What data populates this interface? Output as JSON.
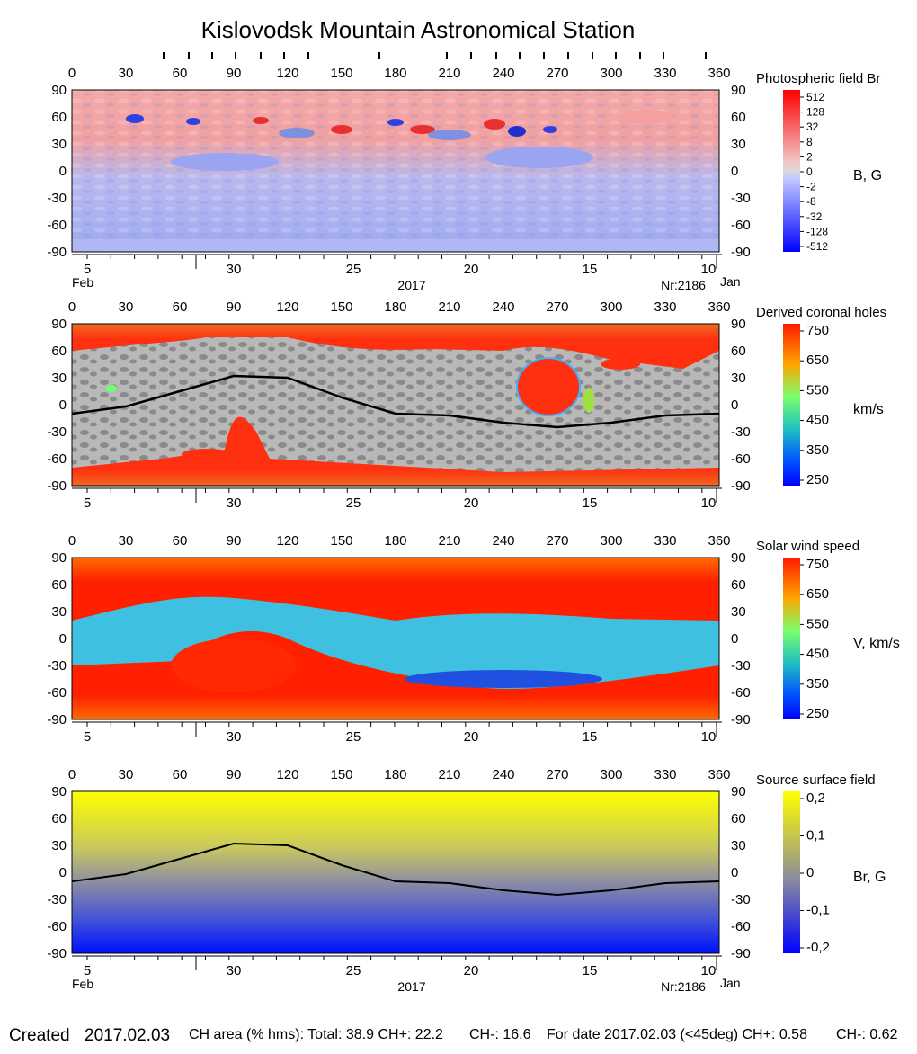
{
  "title": "Kislovodsk Mountain Astronomical Station",
  "panels": [
    {
      "id": "photospheric",
      "label": "Photospheric field Br",
      "unit": "B, G",
      "colorbar_ticks": [
        "512",
        "128",
        "32",
        "8",
        "2",
        "0",
        "-2",
        "-8",
        "-32",
        "-128",
        "-512"
      ],
      "colorbar_colors": [
        "#ff0000",
        "#f0d7d7",
        "#d8d8d8",
        "#bfc7ff",
        "#0000ff"
      ],
      "map_colors": {
        "positive": "#f4a0a0",
        "negative": "#a0a8f0",
        "strong_positive": "#e83030",
        "strong_negative": "#3040e0"
      },
      "show_month_labels": true,
      "show_year": true,
      "show_rotation": true
    },
    {
      "id": "coronal-holes",
      "label": "Derived coronal holes",
      "unit": "km/s",
      "colorbar_ticks": [
        "750",
        "650",
        "550",
        "450",
        "350",
        "250"
      ],
      "colorbar_colors": [
        "#ff1a00",
        "#ffa500",
        "#7aff6a",
        "#20c0c0",
        "#0050ff",
        "#0000ff"
      ],
      "map_colors": {
        "hole": "#e84020",
        "closed": "#b8b8b8",
        "dark": "#808080"
      },
      "show_month_labels": false,
      "show_year": false,
      "show_rotation": false
    },
    {
      "id": "solar-wind",
      "label": "Solar wind speed",
      "unit": "V, km/s",
      "colorbar_ticks": [
        "750",
        "650",
        "550",
        "450",
        "350",
        "250"
      ],
      "colorbar_colors": [
        "#ff1a00",
        "#ffa500",
        "#7aff6a",
        "#20c0c0",
        "#0050ff",
        "#0000ff"
      ],
      "map_colors": {
        "fast": "#ff2800",
        "slow": "#40c0e0",
        "slowest": "#2050e0"
      },
      "show_month_labels": false,
      "show_year": false,
      "show_rotation": false
    },
    {
      "id": "source-surface",
      "label": "Source surface field",
      "unit": "Br, G",
      "colorbar_ticks": [
        "0,2",
        "0,1",
        "0",
        "-0,1",
        "-0,2"
      ],
      "colorbar_colors": [
        "#ffff00",
        "#a0a070",
        "#909090",
        "#4050d0",
        "#0000ff"
      ],
      "map_colors": {
        "top": "#ffff00",
        "mid": "#9a9a80",
        "bottom": "#0010ff"
      },
      "show_month_labels": true,
      "show_year": true,
      "show_rotation": true
    }
  ],
  "axes": {
    "longitude_ticks": [
      "0",
      "30",
      "60",
      "90",
      "120",
      "150",
      "180",
      "210",
      "240",
      "270",
      "300",
      "330",
      "360"
    ],
    "latitude_ticks": [
      "90",
      "60",
      "30",
      "0",
      "-30",
      "-60",
      "-90"
    ],
    "date_ticks": [
      "5",
      "30",
      "25",
      "20",
      "15",
      "10"
    ],
    "month_left": "Feb",
    "month_right": "Jan",
    "year": "2017",
    "rotation": "Nr:2186"
  },
  "chart_data": [
    {
      "type": "heatmap",
      "title": "Photospheric field Br",
      "colorbar_label": "B, G",
      "x_range": [
        0,
        360
      ],
      "y_range": [
        -90,
        90
      ],
      "colorbar_levels": [
        512,
        128,
        32,
        8,
        2,
        0,
        -2,
        -8,
        -32,
        -128,
        -512
      ]
    },
    {
      "type": "heatmap",
      "title": "Derived coronal holes",
      "colorbar_label": "km/s",
      "x_range": [
        0,
        360
      ],
      "y_range": [
        -90,
        90
      ],
      "colorbar_range": [
        250,
        750
      ],
      "neutral_line": {
        "x": [
          0,
          30,
          60,
          90,
          120,
          150,
          180,
          210,
          240,
          270,
          300,
          330,
          360
        ],
        "y": [
          -10,
          -2,
          15,
          32,
          30,
          8,
          -10,
          -12,
          -20,
          -25,
          -20,
          -12,
          -10
        ]
      }
    },
    {
      "type": "heatmap",
      "title": "Solar wind speed",
      "colorbar_label": "V, km/s",
      "x_range": [
        0,
        360
      ],
      "y_range": [
        -90,
        90
      ],
      "colorbar_range": [
        250,
        750
      ]
    },
    {
      "type": "heatmap",
      "title": "Source surface field",
      "colorbar_label": "Br, G",
      "x_range": [
        0,
        360
      ],
      "y_range": [
        -90,
        90
      ],
      "colorbar_range": [
        -0.3,
        0.3
      ],
      "neutral_line": {
        "x": [
          0,
          30,
          60,
          90,
          120,
          150,
          180,
          210,
          240,
          270,
          300,
          330,
          360
        ],
        "y": [
          -10,
          -2,
          15,
          32,
          30,
          8,
          -10,
          -12,
          -20,
          -25,
          -20,
          -12,
          -10
        ]
      }
    }
  ],
  "footer": {
    "created_label": "Created",
    "created_date": "2017.02.03",
    "ch_area": "CH area (% hms): Total: 38.9 CH+: 22.2",
    "ch_minus": "CH-: 16.6",
    "for_date": "For date 2017.02.03 (<45deg) CH+: 0.58",
    "ch_minus_date": "CH-: 0.62"
  }
}
